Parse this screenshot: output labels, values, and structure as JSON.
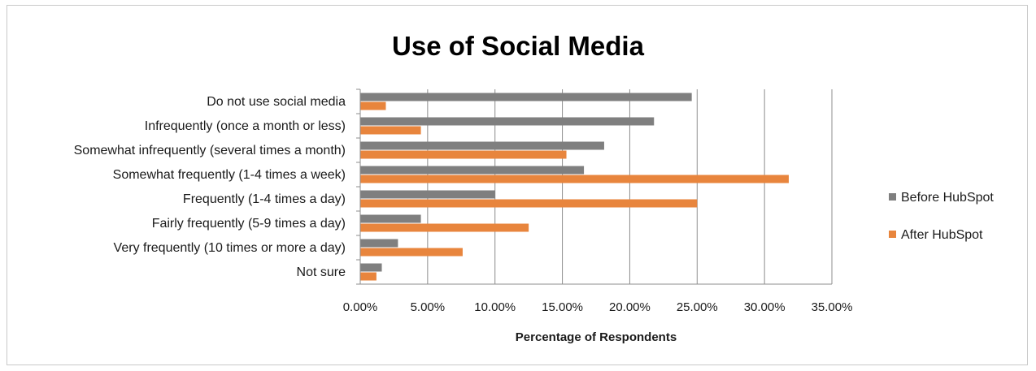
{
  "chart_data": {
    "type": "bar",
    "orientation": "horizontal",
    "title": "Use of Social Media",
    "xlabel": "Percentage of Respondents",
    "ylabel": "",
    "xlim": [
      0,
      35
    ],
    "x_ticks": [
      "0.00%",
      "5.00%",
      "10.00%",
      "15.00%",
      "20.00%",
      "25.00%",
      "30.00%",
      "35.00%"
    ],
    "categories": [
      "Do not use social media",
      "Infrequently (once a month or less)",
      "Somewhat infrequently (several times a month)",
      "Somewhat frequently (1-4 times a week)",
      "Frequently (1-4 times a day)",
      "Fairly frequently (5-9 times a day)",
      "Very frequently (10 times or more a day)",
      "Not sure"
    ],
    "series": [
      {
        "name": "Before HubSpot",
        "color": "#7f7f7f",
        "values": [
          24.6,
          21.8,
          18.1,
          16.6,
          10.0,
          4.5,
          2.8,
          1.6
        ]
      },
      {
        "name": "After HubSpot",
        "color": "#e8853d",
        "values": [
          1.9,
          4.5,
          15.3,
          31.8,
          25.0,
          12.5,
          7.6,
          1.2
        ]
      }
    ],
    "grid": "vertical",
    "legend_position": "right"
  }
}
